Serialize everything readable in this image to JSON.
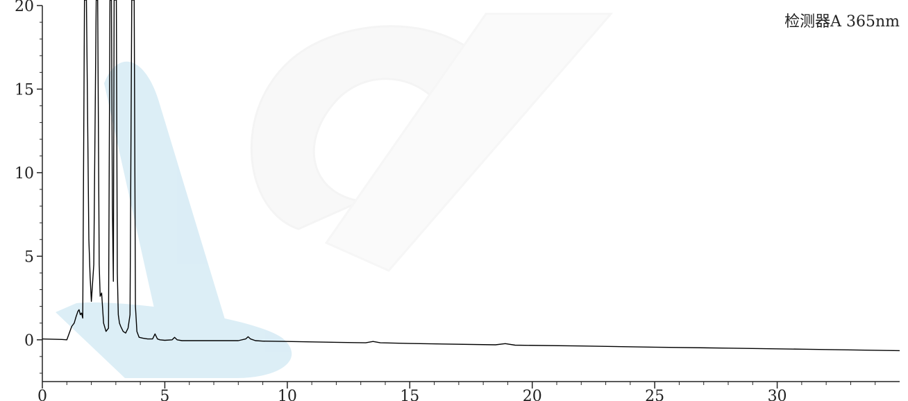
{
  "chart_data": {
    "type": "line",
    "detector_label": "检测器A 365nm",
    "xlim": [
      0,
      35
    ],
    "ylim": [
      -2.5,
      20
    ],
    "x_ticks": [
      0,
      5,
      10,
      15,
      20,
      25,
      30
    ],
    "y_ticks": [
      0,
      5,
      10,
      15,
      20
    ],
    "series": [
      {
        "color": "#000000",
        "x": [
          0,
          0.8,
          1.0,
          1.1,
          1.2,
          1.3,
          1.38,
          1.45,
          1.5,
          1.55,
          1.6,
          1.65,
          1.72,
          1.8,
          1.9,
          1.95,
          2.0,
          2.1,
          2.2,
          2.26,
          2.32,
          2.36,
          2.42,
          2.5,
          2.6,
          2.7,
          2.76,
          2.82,
          2.86,
          2.9,
          2.93,
          2.98,
          3.02,
          3.06,
          3.1,
          3.15,
          3.2,
          3.3,
          3.4,
          3.5,
          3.58,
          3.65,
          3.7,
          3.75,
          3.8,
          3.86,
          3.95,
          4.1,
          4.3,
          4.5,
          4.6,
          4.7,
          4.8,
          5.0,
          5.3,
          5.4,
          5.5,
          5.7,
          6.0,
          7.0,
          8.0,
          8.3,
          8.4,
          8.5,
          8.7,
          9.0,
          10.0,
          12.0,
          13.2,
          13.5,
          13.8,
          15.0,
          18.5,
          18.9,
          19.3,
          22.0,
          25.0,
          28.0,
          31.0,
          35.0
        ],
        "y": [
          0.05,
          0.02,
          0.0,
          0.4,
          0.8,
          1.0,
          1.4,
          1.7,
          1.8,
          1.5,
          1.6,
          1.3,
          20.5,
          20.5,
          6.0,
          3.8,
          2.3,
          4.5,
          20.5,
          20.5,
          4.5,
          2.6,
          2.8,
          1.0,
          0.5,
          0.7,
          20.5,
          20.5,
          8.0,
          3.5,
          20.5,
          20.5,
          20.5,
          4.0,
          1.5,
          1.0,
          0.8,
          0.5,
          0.4,
          0.7,
          1.5,
          20.5,
          20.5,
          20.5,
          2.0,
          0.5,
          0.15,
          0.1,
          0.05,
          0.05,
          0.35,
          0.05,
          0.0,
          -0.03,
          0.0,
          0.15,
          0.0,
          -0.05,
          -0.05,
          -0.05,
          -0.05,
          0.05,
          0.18,
          0.05,
          -0.05,
          -0.08,
          -0.1,
          -0.15,
          -0.18,
          -0.1,
          -0.18,
          -0.22,
          -0.3,
          -0.23,
          -0.32,
          -0.37,
          -0.44,
          -0.5,
          -0.56,
          -0.65
        ]
      }
    ]
  }
}
